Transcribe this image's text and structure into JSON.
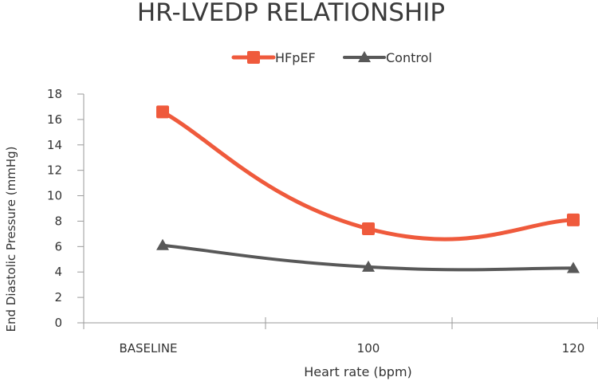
{
  "chart_data": {
    "type": "line",
    "title": "HR-LVEDP RELATIONSHIP",
    "xlabel": "Heart rate (bpm)",
    "ylabel": "End Diastolic Pressure (mmHg)",
    "categories": [
      "BASELINE",
      "100",
      "120"
    ],
    "ylim": [
      0,
      18
    ],
    "yticks": [
      "0",
      "2",
      "4",
      "6",
      "8",
      "10",
      "12",
      "14",
      "16",
      "18"
    ],
    "grid": false,
    "legend_position": "top",
    "series": [
      {
        "name": "HFpEF",
        "values": [
          16.6,
          7.4,
          8.1
        ],
        "color": "#ef5a3c",
        "marker": "square",
        "smooth": true
      },
      {
        "name": "Control",
        "values": [
          6.1,
          4.4,
          4.3
        ],
        "color": "#585858",
        "marker": "triangle",
        "smooth": true
      }
    ]
  }
}
